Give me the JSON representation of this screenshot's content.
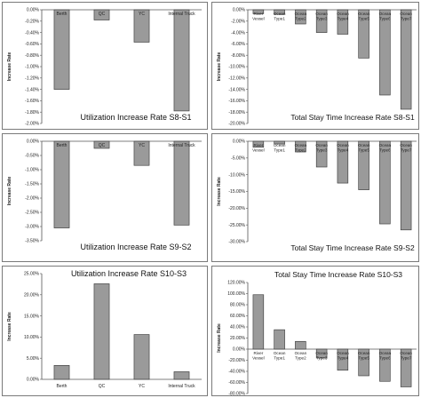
{
  "chart_data": [
    {
      "type": "bar",
      "title": "Utilization Increase Rate S8-S1",
      "ylabel": "Increase Rate",
      "categories": [
        "Berth",
        "QC",
        "YC",
        "Internal Truck"
      ],
      "values": [
        -1.4,
        -0.18,
        -0.57,
        -1.78
      ],
      "ylim": [
        -2.0,
        0.0
      ],
      "yticks": [
        "0.00%",
        "-0.20%",
        "-0.40%",
        "-0.60%",
        "-0.80%",
        "-1.00%",
        "-1.20%",
        "-1.40%",
        "-1.60%",
        "-1.80%",
        "-2.00%"
      ],
      "category_labels_at": "top",
      "grid": false
    },
    {
      "type": "bar",
      "title": "Total Stay Time Increase Rate S8-S1",
      "ylabel": "Increase Rate",
      "categories": [
        "River Vessel",
        "Ocean Type1",
        "Ocean Type2",
        "Ocean Type3",
        "Ocean Type4",
        "Ocean Type5",
        "Ocean Type6",
        "Ocean Type7"
      ],
      "values": [
        -0.7,
        -0.8,
        -2.5,
        -4.0,
        -4.3,
        -8.5,
        -15.0,
        -17.5
      ],
      "ylim": [
        -20.0,
        0.0
      ],
      "yticks": [
        "0.00%",
        "-2.00%",
        "-4.00%",
        "-6.00%",
        "-8.00%",
        "-10.00%",
        "-12.00%",
        "-14.00%",
        "-16.00%",
        "-18.00%",
        "-20.00%"
      ],
      "category_labels_at": "top",
      "grid": false
    },
    {
      "type": "bar",
      "title": "Utilization Increase Rate S9-S2",
      "ylabel": "Increase Rate",
      "categories": [
        "Berth",
        "QC",
        "YC",
        "Internal Truck"
      ],
      "values": [
        -3.05,
        -0.25,
        -0.85,
        -2.95
      ],
      "ylim": [
        -3.5,
        0.0
      ],
      "yticks": [
        "0.00%",
        "-0.50%",
        "-1.00%",
        "-1.50%",
        "-2.00%",
        "-2.50%",
        "-3.00%",
        "-3.50%"
      ],
      "category_labels_at": "top",
      "grid": false
    },
    {
      "type": "bar",
      "title": "Total Stay Time Increase Rate S9-S2",
      "ylabel": "Increase Rate",
      "categories": [
        "River Vessel",
        "Ocean Type1",
        "Ocean Type2",
        "Ocean Type3",
        "Ocean Type4",
        "Ocean Type5",
        "Ocean Type6",
        "Ocean Type7"
      ],
      "values": [
        -1.8,
        -0.8,
        -3.2,
        -7.7,
        -12.5,
        -14.5,
        -24.7,
        -26.5
      ],
      "ylim": [
        -30.0,
        0.0
      ],
      "yticks": [
        "0.00%",
        "-5.00%",
        "-10.00%",
        "-15.00%",
        "-20.00%",
        "-25.00%",
        "-30.00%"
      ],
      "category_labels_at": "top",
      "grid": false
    },
    {
      "type": "bar",
      "title": "Utilization Increase Rate S10-S3",
      "ylabel": "Increase Rate",
      "categories": [
        "Berth",
        "QC",
        "YC",
        "Internal Truck"
      ],
      "values": [
        3.3,
        22.6,
        10.6,
        1.8
      ],
      "ylim": [
        0.0,
        25.0
      ],
      "yticks": [
        "25.00%",
        "20.00%",
        "15.00%",
        "10.00%",
        "5.00%",
        "0.00%"
      ],
      "category_labels_at": "bottom",
      "grid": false
    },
    {
      "type": "bar",
      "title": "Total Stay Time Increase Rate S10-S3",
      "ylabel": "Increase Rate",
      "categories": [
        "River Vessel",
        "Ocean Type1",
        "Ocean Type2",
        "Ocean Type3",
        "Ocean Type4",
        "Ocean Type5",
        "Ocean Type6",
        "Ocean Type7"
      ],
      "values": [
        98,
        35,
        14,
        -16,
        -38,
        -48,
        -58,
        -68
      ],
      "ylim": [
        -80.0,
        120.0
      ],
      "yticks": [
        "120.00%",
        "100.00%",
        "80.00%",
        "60.00%",
        "40.00%",
        "20.00%",
        "0.00%",
        "-20.00%",
        "-40.00%",
        "-60.00%",
        "-80.00%"
      ],
      "category_labels_at": "axis",
      "grid": false
    }
  ]
}
